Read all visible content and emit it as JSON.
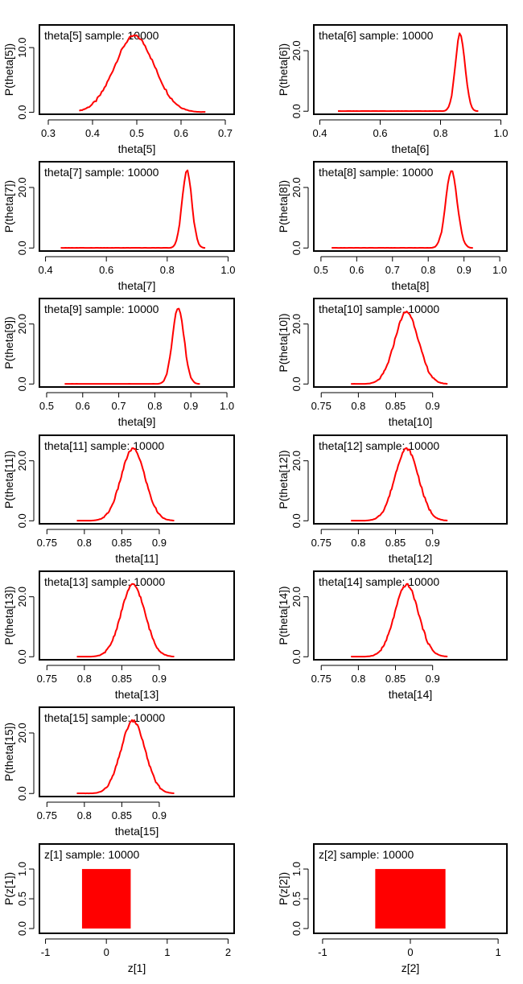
{
  "chart_data": [
    {
      "type": "line",
      "title": "theta[5] sample: 10000",
      "xlabel": "theta[5]",
      "ylabel": "P(theta[5])",
      "xlim": [
        0.28,
        0.72
      ],
      "ylim": [
        -0.3,
        13.5
      ],
      "xticks": [
        {
          "v": 0.3,
          "t": "0.3"
        },
        {
          "v": 0.4,
          "t": "0.4"
        },
        {
          "v": 0.5,
          "t": "0.5"
        },
        {
          "v": 0.6,
          "t": "0.6"
        },
        {
          "v": 0.7,
          "t": "0.7"
        }
      ],
      "yticks": [
        {
          "v": 0,
          "t": "0.0"
        },
        {
          "v": 10,
          "t": "10.0"
        }
      ],
      "shape": "density",
      "x_range": [
        0.37,
        0.655
      ],
      "mode": 0.495,
      "peak": 11.8,
      "sd": 0.045
    },
    {
      "type": "line",
      "title": "theta[6] sample: 10000",
      "xlabel": "theta[6]",
      "ylabel": "P(theta[6])",
      "xlim": [
        0.38,
        1.02
      ],
      "ylim": [
        -1,
        28.5
      ],
      "xticks": [
        {
          "v": 0.4,
          "t": "0.4"
        },
        {
          "v": 0.6,
          "t": "0.6"
        },
        {
          "v": 0.8,
          "t": "0.8"
        },
        {
          "v": 1.0,
          "t": "1.0"
        }
      ],
      "yticks": [
        {
          "v": 0,
          "t": "0.0"
        },
        {
          "v": 20,
          "t": "20.0"
        }
      ],
      "shape": "density",
      "x_range": [
        0.46,
        0.925
      ],
      "mode": 0.865,
      "peak": 25.5,
      "sd": 0.016
    },
    {
      "type": "line",
      "title": "theta[7] sample: 10000",
      "xlabel": "theta[7]",
      "ylabel": "P(theta[7])",
      "xlim": [
        0.38,
        1.02
      ],
      "ylim": [
        -1,
        28.5
      ],
      "xticks": [
        {
          "v": 0.4,
          "t": "0.4"
        },
        {
          "v": 0.6,
          "t": "0.6"
        },
        {
          "v": 0.8,
          "t": "0.8"
        },
        {
          "v": 1.0,
          "t": "1.0"
        }
      ],
      "yticks": [
        {
          "v": 0,
          "t": "0.0"
        },
        {
          "v": 20,
          "t": "20.0"
        }
      ],
      "shape": "density",
      "x_range": [
        0.45,
        0.925
      ],
      "mode": 0.865,
      "peak": 25.5,
      "sd": 0.016
    },
    {
      "type": "line",
      "title": "theta[8] sample: 10000",
      "xlabel": "theta[8]",
      "ylabel": "P(theta[8])",
      "xlim": [
        0.48,
        1.02
      ],
      "ylim": [
        -1,
        28.5
      ],
      "xticks": [
        {
          "v": 0.5,
          "t": "0.5"
        },
        {
          "v": 0.6,
          "t": "0.6"
        },
        {
          "v": 0.7,
          "t": "0.7"
        },
        {
          "v": 0.8,
          "t": "0.8"
        },
        {
          "v": 0.9,
          "t": "0.9"
        },
        {
          "v": 1.0,
          "t": "1.0"
        }
      ],
      "yticks": [
        {
          "v": 0,
          "t": "0.0"
        },
        {
          "v": 20,
          "t": "20.0"
        }
      ],
      "shape": "density",
      "x_range": [
        0.53,
        0.925
      ],
      "mode": 0.865,
      "peak": 25.5,
      "sd": 0.016
    },
    {
      "type": "line",
      "title": "theta[9] sample: 10000",
      "xlabel": "theta[9]",
      "ylabel": "P(theta[9])",
      "xlim": [
        0.48,
        1.02
      ],
      "ylim": [
        -1,
        28.5
      ],
      "xticks": [
        {
          "v": 0.5,
          "t": "0.5"
        },
        {
          "v": 0.6,
          "t": "0.6"
        },
        {
          "v": 0.7,
          "t": "0.7"
        },
        {
          "v": 0.8,
          "t": "0.8"
        },
        {
          "v": 0.9,
          "t": "0.9"
        },
        {
          "v": 1.0,
          "t": "1.0"
        }
      ],
      "yticks": [
        {
          "v": 0,
          "t": "0.0"
        },
        {
          "v": 20,
          "t": "20.0"
        }
      ],
      "shape": "density",
      "x_range": [
        0.55,
        0.925
      ],
      "mode": 0.865,
      "peak": 25.5,
      "sd": 0.016
    },
    {
      "type": "line",
      "title": "theta[10] sample: 10000",
      "xlabel": "theta[10]",
      "ylabel": "P(theta[10])",
      "xlim": [
        0.74,
        1.0
      ],
      "ylim": [
        -1,
        28.5
      ],
      "xticks": [
        {
          "v": 0.75,
          "t": "0.75"
        },
        {
          "v": 0.8,
          "t": "0.8"
        },
        {
          "v": 0.85,
          "t": "0.85"
        },
        {
          "v": 0.9,
          "t": "0.9"
        }
      ],
      "yticks": [
        {
          "v": 0,
          "t": "0.0"
        },
        {
          "v": 20,
          "t": "20.0"
        }
      ],
      "shape": "density",
      "x_range": [
        0.79,
        0.92
      ],
      "mode": 0.865,
      "peak": 24,
      "sd": 0.016
    },
    {
      "type": "line",
      "title": "theta[11] sample: 10000",
      "xlabel": "theta[11]",
      "ylabel": "P(theta[11])",
      "xlim": [
        0.74,
        1.0
      ],
      "ylim": [
        -1,
        28.5
      ],
      "xticks": [
        {
          "v": 0.75,
          "t": "0.75"
        },
        {
          "v": 0.8,
          "t": "0.8"
        },
        {
          "v": 0.85,
          "t": "0.85"
        },
        {
          "v": 0.9,
          "t": "0.9"
        }
      ],
      "yticks": [
        {
          "v": 0,
          "t": "0.0"
        },
        {
          "v": 20,
          "t": "20.0"
        }
      ],
      "shape": "density",
      "x_range": [
        0.79,
        0.92
      ],
      "mode": 0.865,
      "peak": 24,
      "sd": 0.016
    },
    {
      "type": "line",
      "title": "theta[12] sample: 10000",
      "xlabel": "theta[12]",
      "ylabel": "P(theta[12])",
      "xlim": [
        0.74,
        1.0
      ],
      "ylim": [
        -1,
        28.5
      ],
      "xticks": [
        {
          "v": 0.75,
          "t": "0.75"
        },
        {
          "v": 0.8,
          "t": "0.8"
        },
        {
          "v": 0.85,
          "t": "0.85"
        },
        {
          "v": 0.9,
          "t": "0.9"
        }
      ],
      "yticks": [
        {
          "v": 0,
          "t": "0.0"
        },
        {
          "v": 20,
          "t": "20.0"
        }
      ],
      "shape": "density",
      "x_range": [
        0.79,
        0.92
      ],
      "mode": 0.865,
      "peak": 24,
      "sd": 0.016
    },
    {
      "type": "line",
      "title": "theta[13] sample: 10000",
      "xlabel": "theta[13]",
      "ylabel": "P(theta[13])",
      "xlim": [
        0.74,
        1.0
      ],
      "ylim": [
        -1,
        28.5
      ],
      "xticks": [
        {
          "v": 0.75,
          "t": "0.75"
        },
        {
          "v": 0.8,
          "t": "0.8"
        },
        {
          "v": 0.85,
          "t": "0.85"
        },
        {
          "v": 0.9,
          "t": "0.9"
        }
      ],
      "yticks": [
        {
          "v": 0,
          "t": "0.0"
        },
        {
          "v": 20,
          "t": "20.0"
        }
      ],
      "shape": "density",
      "x_range": [
        0.79,
        0.92
      ],
      "mode": 0.865,
      "peak": 24,
      "sd": 0.016
    },
    {
      "type": "line",
      "title": "theta[14] sample: 10000",
      "xlabel": "theta[14]",
      "ylabel": "P(theta[14])",
      "xlim": [
        0.74,
        1.0
      ],
      "ylim": [
        -1,
        28.5
      ],
      "xticks": [
        {
          "v": 0.75,
          "t": "0.75"
        },
        {
          "v": 0.8,
          "t": "0.8"
        },
        {
          "v": 0.85,
          "t": "0.85"
        },
        {
          "v": 0.9,
          "t": "0.9"
        }
      ],
      "yticks": [
        {
          "v": 0,
          "t": "0.0"
        },
        {
          "v": 20,
          "t": "20.0"
        }
      ],
      "shape": "density",
      "x_range": [
        0.79,
        0.92
      ],
      "mode": 0.865,
      "peak": 24,
      "sd": 0.016
    },
    {
      "type": "line",
      "title": "theta[15] sample: 10000",
      "xlabel": "theta[15]",
      "ylabel": "P(theta[15])",
      "xlim": [
        0.74,
        1.0
      ],
      "ylim": [
        -1,
        28.5
      ],
      "xticks": [
        {
          "v": 0.75,
          "t": "0.75"
        },
        {
          "v": 0.8,
          "t": "0.8"
        },
        {
          "v": 0.85,
          "t": "0.85"
        },
        {
          "v": 0.9,
          "t": "0.9"
        }
      ],
      "yticks": [
        {
          "v": 0,
          "t": "0.0"
        },
        {
          "v": 20,
          "t": "20.0"
        }
      ],
      "shape": "density",
      "x_range": [
        0.79,
        0.92
      ],
      "mode": 0.865,
      "peak": 24,
      "sd": 0.016
    },
    {
      "type": "bar",
      "title": "z[1] sample: 10000",
      "xlabel": "z[1]",
      "ylabel": "P(z[1])",
      "xlim": [
        -1.1,
        2.1
      ],
      "ylim": [
        -0.08,
        1.42
      ],
      "xticks": [
        {
          "v": -1,
          "t": "-1"
        },
        {
          "v": 0,
          "t": "0"
        },
        {
          "v": 1,
          "t": "1"
        },
        {
          "v": 2,
          "t": "2"
        }
      ],
      "yticks": [
        {
          "v": 0,
          "t": "0.0"
        },
        {
          "v": 0.5,
          "t": "0.5"
        },
        {
          "v": 1,
          "t": "1.0"
        }
      ],
      "shape": "bar",
      "bar_from": -0.4,
      "bar_to": 0.4,
      "value": 1.0
    },
    {
      "type": "bar",
      "title": "z[2] sample: 10000",
      "xlabel": "z[2]",
      "ylabel": "P(z[2])",
      "xlim": [
        -1.1,
        1.1
      ],
      "ylim": [
        -0.08,
        1.42
      ],
      "xticks": [
        {
          "v": -1,
          "t": "-1"
        },
        {
          "v": 0,
          "t": "0"
        },
        {
          "v": 1,
          "t": "1"
        }
      ],
      "yticks": [
        {
          "v": 0,
          "t": "0.0"
        },
        {
          "v": 0.5,
          "t": "0.5"
        },
        {
          "v": 1,
          "t": "1.0"
        }
      ],
      "shape": "bar",
      "bar_from": -0.4,
      "bar_to": 0.4,
      "value": 1.0
    }
  ],
  "colors": {
    "series": "#ff0000",
    "axis": "#000000",
    "background": "#ffffff"
  }
}
